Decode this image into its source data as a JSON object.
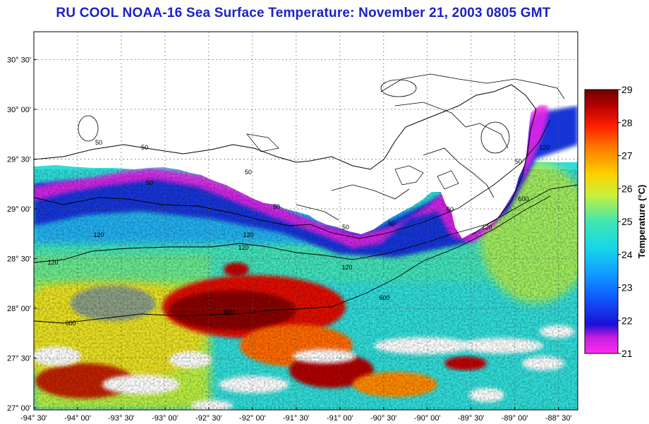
{
  "title": "RU COOL  NOAA-16  Sea Surface Temperature:  November 21, 2003 0805 GMT",
  "map": {
    "lat_labels": [
      "30° 30'",
      "30° 00'",
      "29° 30'",
      "29° 00'",
      "28° 30'",
      "28° 00'",
      "27° 30'",
      "27° 00'"
    ],
    "lon_labels": [
      "-94° 30'",
      "-94° 00'",
      "-93° 30'",
      "-93° 00'",
      "-92° 30'",
      "-92° 00'",
      "-91° 30'",
      "-91° 00'",
      "-90° 30'",
      "-90° 00'",
      "-89° 30'",
      "-89° 00'",
      "-88° 30'"
    ],
    "lat_range": [
      26.98,
      30.78
    ],
    "lon_range": [
      -94.5,
      -88.28
    ],
    "grid": true,
    "land_color": "#ffffff",
    "contour_labels": [
      "50",
      "50",
      "50",
      "50",
      "50",
      "50",
      "50",
      "50",
      "50",
      "120",
      "120",
      "120",
      "120",
      "120",
      "120",
      "120",
      "600",
      "600",
      "600",
      "600"
    ]
  },
  "colorbar": {
    "title": "Temperature (°C)",
    "min": 21,
    "max": 29,
    "ticks": [
      "29",
      "28",
      "27",
      "26",
      "25",
      "24",
      "23",
      "22",
      "21"
    ],
    "colors": [
      "#ff2df0",
      "#1a10d8",
      "#0a86ff",
      "#1ed0f0",
      "#40e6b0",
      "#c8f03c",
      "#ffd000",
      "#ff5a00",
      "#c80000",
      "#6e0000"
    ]
  }
}
